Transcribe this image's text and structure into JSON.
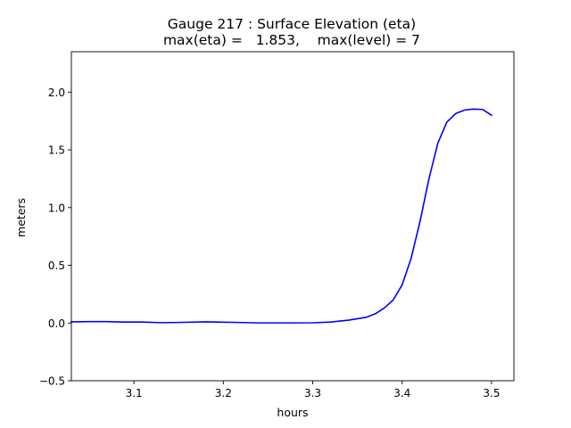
{
  "chart_data": {
    "type": "line",
    "title": "Gauge 217 : Surface Elevation (eta)",
    "subtitle": "max(eta) =   1.853,    max(level) = 7",
    "xlabel": "hours",
    "ylabel": "meters",
    "xlim": [
      3.03,
      3.525
    ],
    "ylim": [
      -0.5,
      2.35
    ],
    "xticks": [
      3.1,
      3.2,
      3.3,
      3.4,
      3.5
    ],
    "xtick_labels": [
      "3.1",
      "3.2",
      "3.3",
      "3.4",
      "3.5"
    ],
    "yticks": [
      -0.5,
      0.0,
      0.5,
      1.0,
      1.5,
      2.0
    ],
    "ytick_labels": [
      "−0.5",
      "0.0",
      "0.5",
      "1.0",
      "1.5",
      "2.0"
    ],
    "grid": false,
    "series": [
      {
        "name": "eta",
        "color": "#0000ff",
        "x": [
          3.03,
          3.05,
          3.07,
          3.09,
          3.11,
          3.13,
          3.15,
          3.18,
          3.21,
          3.24,
          3.27,
          3.3,
          3.32,
          3.34,
          3.36,
          3.37,
          3.38,
          3.39,
          3.4,
          3.41,
          3.42,
          3.43,
          3.44,
          3.45,
          3.46,
          3.47,
          3.48,
          3.49,
          3.5
        ],
        "y": [
          0.01,
          0.012,
          0.012,
          0.008,
          0.008,
          0.003,
          0.005,
          0.01,
          0.006,
          0.001,
          0.001,
          0.002,
          0.008,
          0.025,
          0.05,
          0.08,
          0.13,
          0.2,
          0.33,
          0.56,
          0.88,
          1.25,
          1.56,
          1.74,
          1.815,
          1.845,
          1.853,
          1.85,
          1.8
        ]
      }
    ]
  }
}
